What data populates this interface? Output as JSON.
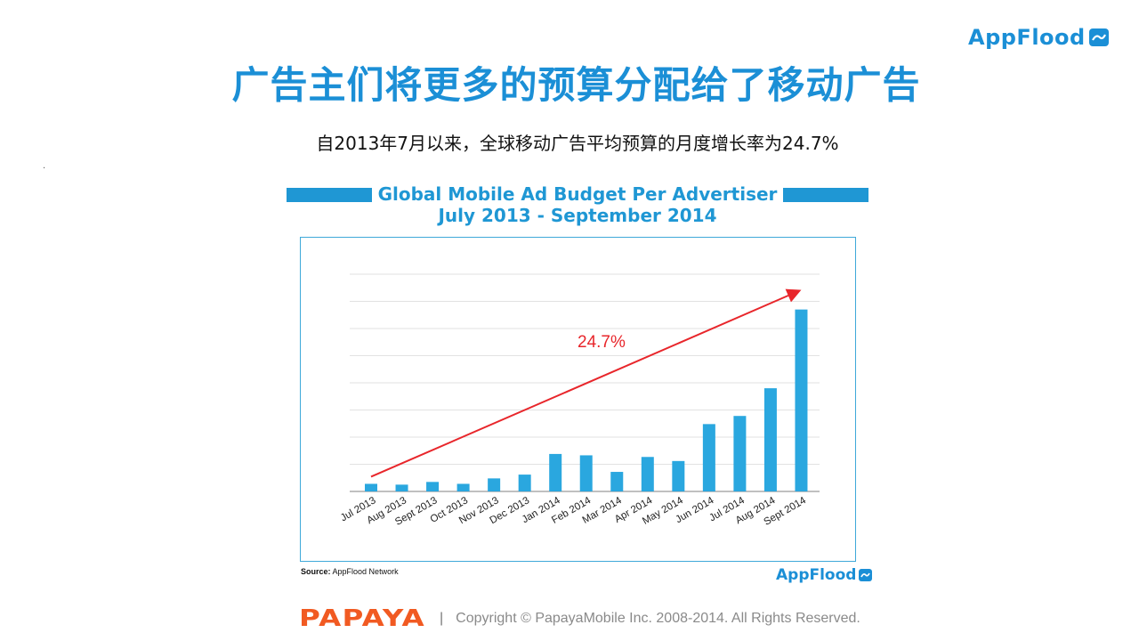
{
  "brand": {
    "name": "AppFlood",
    "color": "#1b8fd6"
  },
  "header": {
    "title": "广告主们将更多的预算分配给了移动广告",
    "subtitle": "自2013年7月以来，全球移动广告平均预算的月度增长率为24.7%"
  },
  "chart_data": {
    "type": "bar",
    "title": "Global Mobile Ad Budget Per Advertiser",
    "subtitle": "July 2013 - September 2014",
    "categories": [
      "Jul 2013",
      "Aug 2013",
      "Sept 2013",
      "Oct 2013",
      "Nov 2013",
      "Dec 2013",
      "Jan 2014",
      "Feb 2014",
      "Mar 2014",
      "Apr 2014",
      "May 2014",
      "Jun 2014",
      "Jul 2014",
      "Aug 2014",
      "Sept 2014"
    ],
    "values": [
      0.28,
      0.25,
      0.35,
      0.28,
      0.48,
      0.62,
      1.38,
      1.33,
      0.72,
      1.27,
      1.12,
      2.48,
      2.78,
      3.8,
      6.7
    ],
    "ylim": [
      0,
      8
    ],
    "grid": true,
    "bar_color": "#2aa7df",
    "trend_annotation": {
      "label": "24.7%",
      "color": "#e8262b"
    }
  },
  "source": {
    "prefix": "Source:",
    "text": "AppFlood Network"
  },
  "footer": {
    "logo_text": "PAPAYA",
    "separator": "|",
    "copyright": "Copyright © PapayaMobile Inc. 2008-2014. All Rights Reserved."
  }
}
